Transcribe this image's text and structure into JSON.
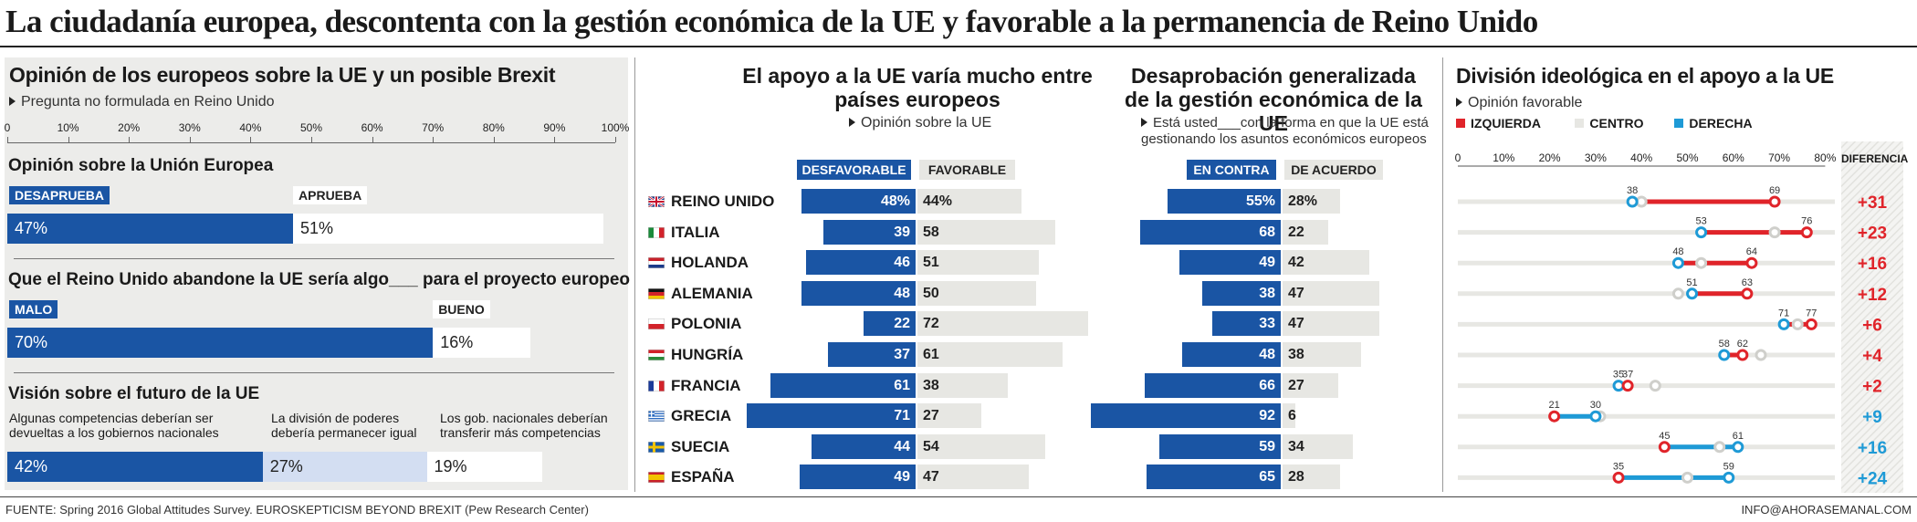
{
  "title": "La ciudadanía europea, descontenta con la gestión económica de la UE y favorable a la permanencia de Reino Unido",
  "source": "FUENTE: Spring 2016 Global Attitudes Survey. EUROSKEPTICISM BEYOND BREXIT (Pew Research Center)",
  "contact": "INFO@AHORASEMANAL.COM",
  "colors": {
    "blue": "#1a55a4",
    "red": "#e0242a",
    "cyan": "#1e9ad6",
    "light": "#e7e7e3",
    "panel": "#ececea"
  },
  "panel1": {
    "title": "Opinión de los europeos sobre la UE y un posible Brexit",
    "note": "Pregunta no formulada en Reino Unido",
    "axis_ticks": [
      "0",
      "10%",
      "20%",
      "30%",
      "40%",
      "50%",
      "60%",
      "70%",
      "80%",
      "90%",
      "100%"
    ],
    "q1": {
      "title": "Opinión sobre la Unión Europea",
      "neg_label": "DESAPRUEBA",
      "pos_label": "APRUEBA",
      "neg_value": 47,
      "pos_value": 51,
      "neg_text": "47%",
      "pos_text": "51%"
    },
    "q2": {
      "title": "Que el Reino Unido abandone la UE sería algo___ para el proyecto europeo",
      "neg_label": "MALO",
      "pos_label": "BUENO",
      "neg_value": 70,
      "pos_value": 16,
      "neg_text": "70%",
      "pos_text": "16%"
    },
    "q3": {
      "title": "Visión sobre el futuro de la UE",
      "opt1": "Algunas competencias deberían ser devueltas a los gobiernos nacionales",
      "opt2": "La división de poderes debería permanecer igual",
      "opt3": "Los gob. nacionales deberían transferir más competencias",
      "v1": 42,
      "v2": 27,
      "v3": 19,
      "t1": "42%",
      "t2": "27%",
      "t3": "19%"
    }
  },
  "panel2": {
    "title": "El apoyo a la UE varía mucho entre países europeos",
    "note": "Opinión sobre la UE",
    "neg_label": "DESFAVORABLE",
    "pos_label": "FAVORABLE"
  },
  "panel3": {
    "title": "Desaprobación generalizada de la gestión económica de la UE",
    "note": "Está usted___con la forma en que la UE está gestionando los asuntos económicos europeos",
    "neg_label": "EN CONTRA",
    "pos_label": "DE ACUERDO"
  },
  "panel4": {
    "title": "División ideológica en el apoyo a la UE",
    "note": "Opinión favorable",
    "legend": {
      "left": "IZQUIERDA",
      "center": "CENTRO",
      "right": "DERECHA"
    },
    "axis_ticks": [
      "0",
      "10%",
      "20%",
      "30%",
      "40%",
      "50%",
      "60%",
      "70%",
      "80%"
    ],
    "diff_header": "DIFERENCIA"
  },
  "chart_data": [
    {
      "type": "bar",
      "title": "Opinión de los europeos sobre la UE y un posible Brexit",
      "series": [
        {
          "name": "Opinión sobre la Unión Europea",
          "categories": [
            "DESAPRUEBA",
            "APRUEBA"
          ],
          "values": [
            47,
            51
          ]
        },
        {
          "name": "Que el Reino Unido abandone la UE sería algo___ para el proyecto europeo",
          "categories": [
            "MALO",
            "BUENO"
          ],
          "values": [
            70,
            16
          ]
        },
        {
          "name": "Visión sobre el futuro de la UE",
          "categories": [
            "Algunas competencias deberían ser devueltas a los gobiernos nacionales",
            "La división de poderes debería permanecer igual",
            "Los gob. nacionales deberían transferir más competencias"
          ],
          "values": [
            42,
            27,
            19
          ]
        }
      ],
      "xlim": [
        0,
        100
      ]
    },
    {
      "type": "bar",
      "title": "El apoyo a la UE varía mucho entre países europeos",
      "categories": [
        "REINO UNIDO",
        "ITALIA",
        "HOLANDA",
        "ALEMANIA",
        "POLONIA",
        "HUNGRÍA",
        "FRANCIA",
        "GRECIA",
        "SUECIA",
        "ESPAÑA"
      ],
      "series": [
        {
          "name": "DESFAVORABLE",
          "values": [
            48,
            39,
            46,
            48,
            22,
            37,
            61,
            71,
            44,
            49
          ]
        },
        {
          "name": "FAVORABLE",
          "values": [
            44,
            58,
            51,
            50,
            72,
            61,
            38,
            27,
            54,
            47
          ]
        }
      ]
    },
    {
      "type": "bar",
      "title": "Desaprobación generalizada de la gestión económica de la UE",
      "categories": [
        "REINO UNIDO",
        "ITALIA",
        "HOLANDA",
        "ALEMANIA",
        "POLONIA",
        "HUNGRÍA",
        "FRANCIA",
        "GRECIA",
        "SUECIA",
        "ESPAÑA"
      ],
      "series": [
        {
          "name": "EN CONTRA",
          "values": [
            55,
            68,
            49,
            38,
            33,
            48,
            66,
            92,
            59,
            65
          ]
        },
        {
          "name": "DE ACUERDO",
          "values": [
            28,
            22,
            42,
            47,
            47,
            38,
            27,
            6,
            34,
            28
          ]
        }
      ]
    },
    {
      "type": "scatter",
      "title": "División ideológica en el apoyo a la UE",
      "categories": [
        "REINO UNIDO",
        "ITALIA",
        "HOLANDA",
        "ALEMANIA",
        "POLONIA",
        "HUNGRÍA",
        "FRANCIA",
        "GRECIA",
        "SUECIA",
        "ESPAÑA"
      ],
      "series": [
        {
          "name": "IZQUIERDA",
          "values": [
            69,
            76,
            64,
            63,
            77,
            62,
            37,
            21,
            45,
            35
          ]
        },
        {
          "name": "CENTRO",
          "values": [
            40,
            69,
            53,
            48,
            74,
            66,
            43,
            31,
            57,
            50
          ]
        },
        {
          "name": "DERECHA",
          "values": [
            38,
            53,
            48,
            51,
            71,
            58,
            35,
            30,
            61,
            59
          ]
        }
      ],
      "labels_left": [
        38,
        53,
        48,
        51,
        71,
        58,
        35,
        21,
        45,
        35
      ],
      "labels_right": [
        69,
        76,
        64,
        63,
        77,
        62,
        37,
        30,
        61,
        59
      ],
      "differences": [
        "+31",
        "+23",
        "+16",
        "+12",
        "+6",
        "+4",
        "+2",
        "+9",
        "+16",
        "+24"
      ],
      "difference_colors": [
        "red",
        "red",
        "red",
        "red",
        "red",
        "red",
        "red",
        "blue",
        "blue",
        "blue"
      ],
      "xlim": [
        0,
        80
      ]
    }
  ],
  "countries": [
    {
      "name": "REINO UNIDO",
      "flag": "uk"
    },
    {
      "name": "ITALIA",
      "flag": "it"
    },
    {
      "name": "HOLANDA",
      "flag": "nl"
    },
    {
      "name": "ALEMANIA",
      "flag": "de"
    },
    {
      "name": "POLONIA",
      "flag": "pl"
    },
    {
      "name": "HUNGRÍA",
      "flag": "hu"
    },
    {
      "name": "FRANCIA",
      "flag": "fr"
    },
    {
      "name": "GRECIA",
      "flag": "gr"
    },
    {
      "name": "SUECIA",
      "flag": "se"
    },
    {
      "name": "ESPAÑA",
      "flag": "es"
    }
  ]
}
